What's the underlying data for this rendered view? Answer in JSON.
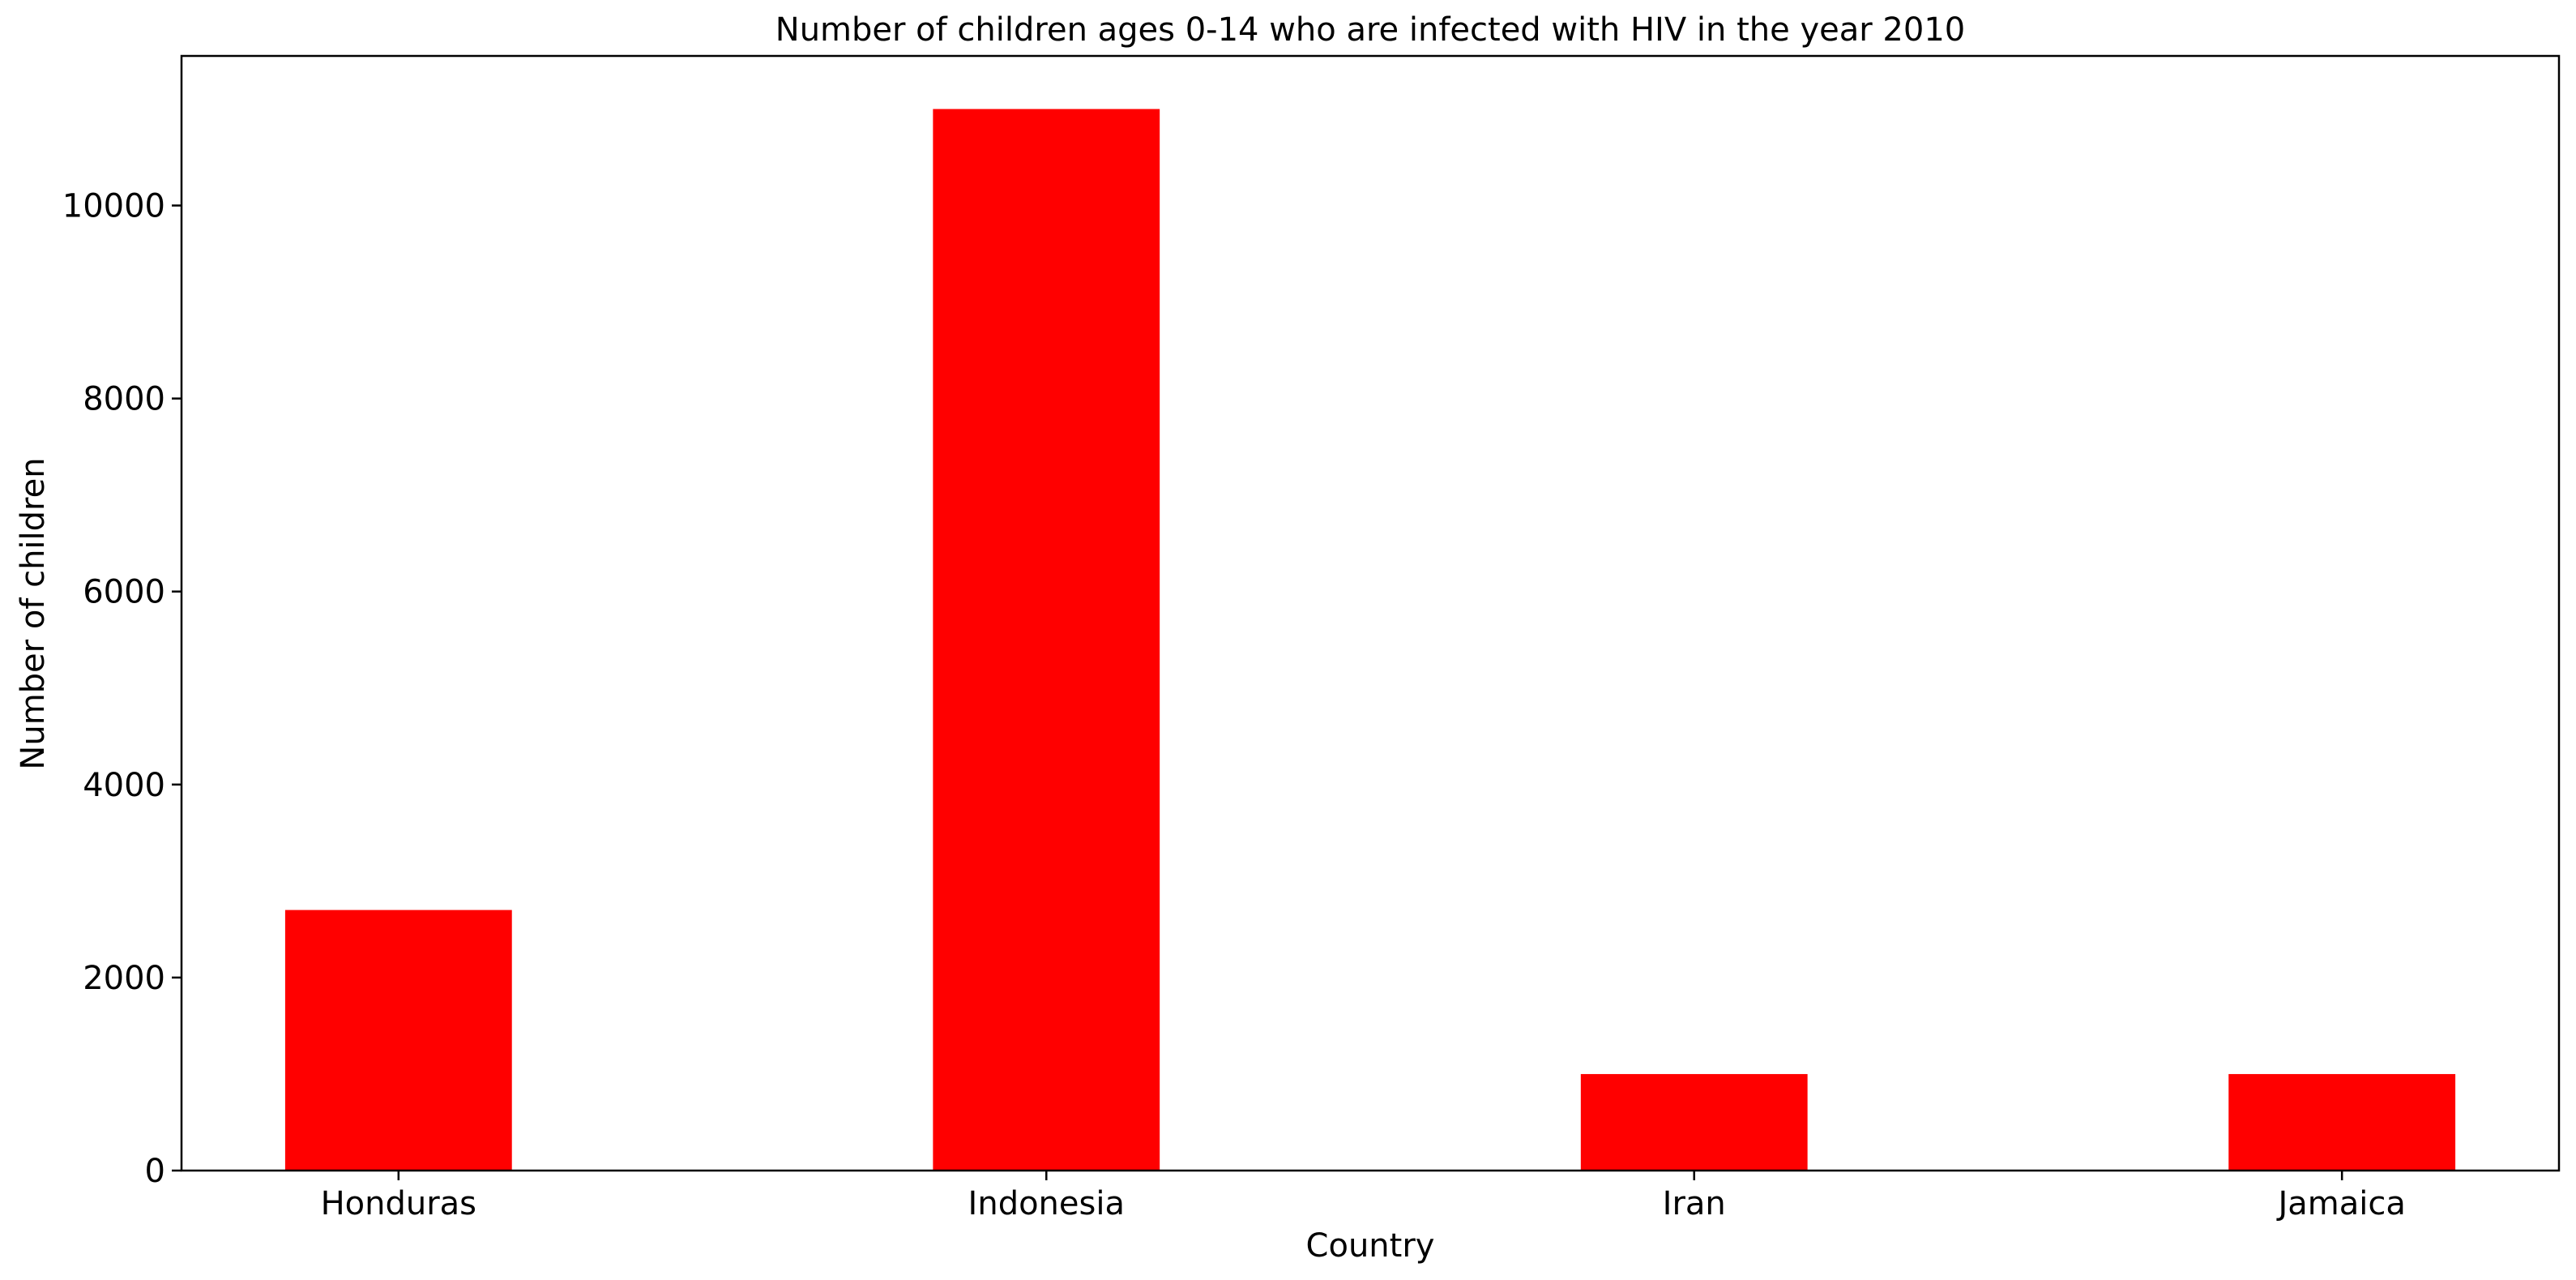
{
  "chart_data": {
    "type": "bar",
    "title": "Number of children ages 0-14 who are infected with HIV in the year 2010",
    "xlabel": "Country",
    "ylabel": "Number of children",
    "categories": [
      "Honduras",
      "Indonesia",
      "Iran",
      "Jamaica"
    ],
    "values": [
      2700,
      11000,
      1000,
      1000
    ],
    "ylim": [
      0,
      11550
    ],
    "yticks": [
      0,
      2000,
      4000,
      6000,
      8000,
      10000
    ],
    "bar_color": "#ff0000",
    "grid": false,
    "legend": false
  }
}
